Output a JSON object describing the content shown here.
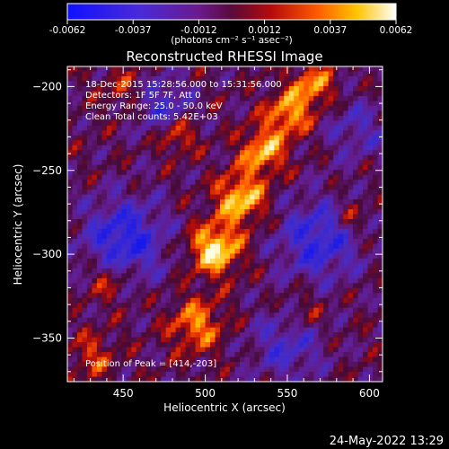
{
  "colorbar": {
    "ticks": [
      "-0.0062",
      "-0.0037",
      "-0.0012",
      "0.0012",
      "0.0037",
      "0.0062"
    ],
    "units": "(photons cm⁻² s⁻¹ asec⁻²)",
    "vmin": -0.0062,
    "vmax": 0.0062
  },
  "chart_data": {
    "type": "heatmap",
    "title": "Reconstructed RHESSI Image",
    "xlabel": "Heliocentric X (arcsec)",
    "ylabel": "Heliocentric Y (arcsec)",
    "xlim": [
      416,
      608
    ],
    "ylim": [
      -376,
      -188
    ],
    "xticks": [
      450,
      500,
      550,
      600
    ],
    "yticks": [
      -350,
      -300,
      -250,
      -200
    ],
    "peak_position": [
      414,
      -203
    ],
    "colormap": "fire"
  },
  "annotations": [
    "18-Dec-2015 15:28:56.000 to 15:31:56.000",
    "Detectors: 1F 5F 7F, Att 0",
    "Energy Range: 25.0 - 50.0 keV",
    "Clean     Total counts: 5.42E+03"
  ],
  "peak_label": "Position of Peak = [414,-203]",
  "timestamp": "24-May-2022 13:29"
}
